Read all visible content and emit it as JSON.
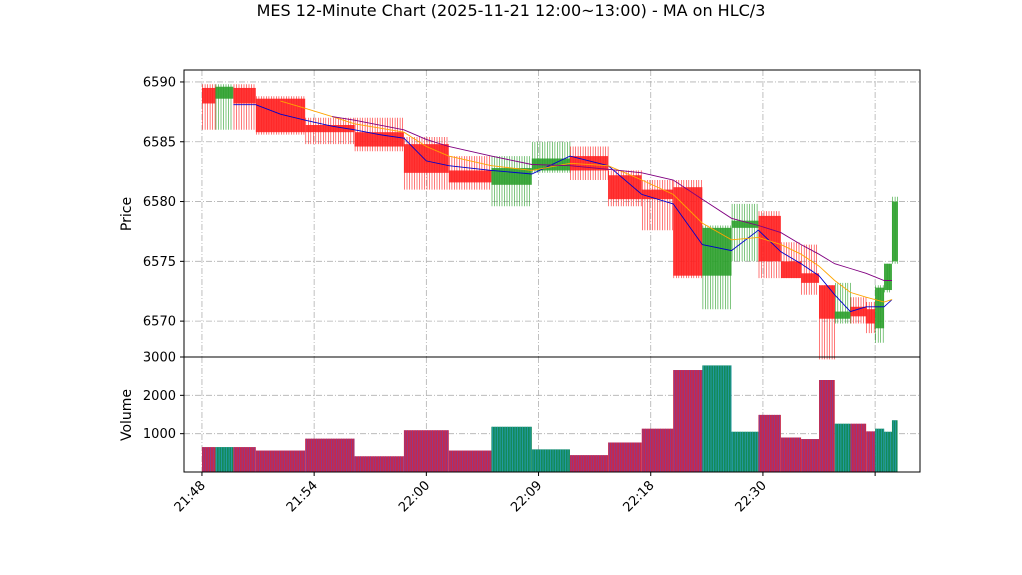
{
  "chart_data": {
    "type": "candlestick",
    "title": "MES 12-Minute Chart (2025-11-21 12:00~13:00) - MA on HLC/3",
    "price_panel": {
      "ylabel": "Price",
      "ylim": [
        6567,
        6591
      ],
      "yticks": [
        6570,
        6575,
        6580,
        6585,
        6590
      ],
      "ytick_labels": [
        "6570",
        "6575",
        "6580",
        "6585",
        "6590"
      ]
    },
    "volume_panel": {
      "ylabel": "Volume",
      "ylim": [
        0,
        3000
      ],
      "yticks": [
        1000,
        2000,
        3000
      ],
      "ytick_labels": [
        "1000",
        "2000",
        "3000"
      ]
    },
    "xlim": [
      -0.8,
      32.0
    ],
    "xticks": [
      0,
      5,
      10,
      15,
      20,
      25,
      30
    ],
    "xtick_labels": [
      "21:48",
      "21:54",
      "22:00",
      "22:09",
      "22:18",
      "22:30",
      ""
    ],
    "grid": true,
    "colors": {
      "up": "#2ca02c",
      "down": "#ff2020",
      "ma_short": "#0000cc",
      "ma_mid": "#ffa500",
      "ma_long": "#800080"
    },
    "candles": [
      {
        "x0": 0.0,
        "x1": 0.6,
        "open": 6589.5,
        "close": 6588.2,
        "high": 6589.8,
        "low": 6586.0,
        "volume": 650
      },
      {
        "x0": 0.6,
        "x1": 1.4,
        "open": 6588.6,
        "close": 6589.6,
        "high": 6589.8,
        "low": 6586.0,
        "volume": 650
      },
      {
        "x0": 1.4,
        "x1": 2.4,
        "open": 6589.5,
        "close": 6588.2,
        "high": 6589.8,
        "low": 6586.0,
        "volume": 650
      },
      {
        "x0": 2.4,
        "x1": 4.6,
        "open": 6588.6,
        "close": 6585.8,
        "high": 6588.8,
        "low": 6585.6,
        "volume": 560
      },
      {
        "x0": 4.6,
        "x1": 6.8,
        "open": 6586.4,
        "close": 6585.8,
        "high": 6587.0,
        "low": 6584.8,
        "volume": 870
      },
      {
        "x0": 6.8,
        "x1": 9.0,
        "open": 6585.8,
        "close": 6584.6,
        "high": 6587.0,
        "low": 6584.2,
        "volume": 410
      },
      {
        "x0": 9.0,
        "x1": 11.0,
        "open": 6584.8,
        "close": 6582.4,
        "high": 6585.4,
        "low": 6581.0,
        "volume": 1090
      },
      {
        "x0": 11.0,
        "x1": 12.9,
        "open": 6582.6,
        "close": 6581.6,
        "high": 6583.8,
        "low": 6581.0,
        "volume": 560
      },
      {
        "x0": 12.9,
        "x1": 14.7,
        "open": 6581.4,
        "close": 6582.8,
        "high": 6583.8,
        "low": 6579.6,
        "volume": 1180
      },
      {
        "x0": 14.7,
        "x1": 16.4,
        "open": 6582.6,
        "close": 6583.6,
        "high": 6585.0,
        "low": 6582.4,
        "volume": 590
      },
      {
        "x0": 16.4,
        "x1": 18.1,
        "open": 6583.8,
        "close": 6582.6,
        "high": 6584.6,
        "low": 6581.8,
        "volume": 440
      },
      {
        "x0": 18.1,
        "x1": 19.6,
        "open": 6582.2,
        "close": 6580.2,
        "high": 6582.6,
        "low": 6579.6,
        "volume": 770
      },
      {
        "x0": 19.6,
        "x1": 21.0,
        "open": 6581.0,
        "close": 6580.2,
        "high": 6581.8,
        "low": 6577.6,
        "volume": 1130
      },
      {
        "x0": 21.0,
        "x1": 22.3,
        "open": 6581.2,
        "close": 6573.8,
        "high": 6581.8,
        "low": 6573.6,
        "volume": 2660
      },
      {
        "x0": 22.3,
        "x1": 23.6,
        "open": 6573.8,
        "close": 6577.8,
        "high": 6578.0,
        "low": 6571.0,
        "volume": 2780
      },
      {
        "x0": 23.6,
        "x1": 24.8,
        "open": 6577.8,
        "close": 6578.4,
        "high": 6579.8,
        "low": 6575.0,
        "volume": 1050
      },
      {
        "x0": 24.8,
        "x1": 25.8,
        "open": 6578.8,
        "close": 6575.0,
        "high": 6579.2,
        "low": 6573.6,
        "volume": 1490
      },
      {
        "x0": 25.8,
        "x1": 26.7,
        "open": 6575.0,
        "close": 6573.6,
        "high": 6576.6,
        "low": 6573.6,
        "volume": 900
      },
      {
        "x0": 26.7,
        "x1": 27.5,
        "open": 6574.0,
        "close": 6573.2,
        "high": 6576.4,
        "low": 6572.2,
        "volume": 860
      },
      {
        "x0": 27.5,
        "x1": 28.2,
        "open": 6573.0,
        "close": 6570.2,
        "high": 6573.0,
        "low": 6566.8,
        "volume": 2400
      },
      {
        "x0": 28.2,
        "x1": 28.9,
        "open": 6570.2,
        "close": 6570.8,
        "high": 6573.2,
        "low": 6569.8,
        "volume": 1260
      },
      {
        "x0": 28.9,
        "x1": 29.6,
        "open": 6571.2,
        "close": 6570.4,
        "high": 6572.0,
        "low": 6569.8,
        "volume": 1260
      },
      {
        "x0": 29.6,
        "x1": 30.0,
        "open": 6571.0,
        "close": 6569.8,
        "high": 6571.6,
        "low": 6569.0,
        "volume": 1060
      },
      {
        "x0": 30.0,
        "x1": 30.4,
        "open": 6569.4,
        "close": 6572.8,
        "high": 6573.0,
        "low": 6568.2,
        "volume": 1130
      },
      {
        "x0": 30.4,
        "x1": 30.75,
        "open": 6572.6,
        "close": 6574.8,
        "high": 6574.8,
        "low": 6572.4,
        "volume": 1050
      },
      {
        "x0": 30.75,
        "x1": 31.0,
        "open": 6575.0,
        "close": 6580.0,
        "high": 6580.4,
        "low": 6574.8,
        "volume": 1350
      }
    ],
    "ma_series": [
      {
        "key": "ma_short",
        "points": [
          [
            1.4,
            6588.1
          ],
          [
            2.4,
            6588.1
          ],
          [
            3.5,
            6587.3
          ],
          [
            4.6,
            6586.8
          ],
          [
            5.8,
            6586.3
          ],
          [
            6.8,
            6586.0
          ],
          [
            7.9,
            6585.6
          ],
          [
            9.0,
            6585.3
          ],
          [
            10.0,
            6583.4
          ],
          [
            11.0,
            6583.0
          ],
          [
            12.9,
            6582.6
          ],
          [
            14.7,
            6582.3
          ],
          [
            16.4,
            6583.8
          ],
          [
            18.1,
            6583.0
          ],
          [
            19.6,
            6580.6
          ],
          [
            21.0,
            6579.8
          ],
          [
            22.3,
            6576.4
          ],
          [
            23.6,
            6575.9
          ],
          [
            24.8,
            6577.6
          ],
          [
            25.8,
            6575.8
          ],
          [
            26.7,
            6574.8
          ],
          [
            27.5,
            6573.8
          ],
          [
            28.2,
            6572.2
          ],
          [
            28.9,
            6570.8
          ],
          [
            29.6,
            6571.2
          ],
          [
            30.4,
            6571.2
          ],
          [
            30.75,
            6571.8
          ]
        ]
      },
      {
        "key": "ma_mid",
        "points": [
          [
            3.5,
            6588.4
          ],
          [
            4.6,
            6587.8
          ],
          [
            5.8,
            6587.1
          ],
          [
            6.8,
            6586.5
          ],
          [
            9.0,
            6585.8
          ],
          [
            10.0,
            6584.6
          ],
          [
            11.0,
            6583.8
          ],
          [
            12.9,
            6583.0
          ],
          [
            14.7,
            6582.6
          ],
          [
            16.4,
            6583.2
          ],
          [
            18.1,
            6583.0
          ],
          [
            19.6,
            6581.8
          ],
          [
            21.0,
            6580.6
          ],
          [
            22.3,
            6578.2
          ],
          [
            23.6,
            6576.8
          ],
          [
            24.8,
            6577.0
          ],
          [
            25.8,
            6576.4
          ],
          [
            26.7,
            6575.6
          ],
          [
            27.5,
            6574.6
          ],
          [
            28.2,
            6573.4
          ],
          [
            28.9,
            6572.4
          ],
          [
            29.6,
            6572.0
          ],
          [
            30.4,
            6571.6
          ],
          [
            30.75,
            6571.8
          ]
        ]
      },
      {
        "key": "ma_long",
        "points": [
          [
            5.8,
            6587.1
          ],
          [
            6.8,
            6586.8
          ],
          [
            9.0,
            6586.0
          ],
          [
            10.0,
            6585.2
          ],
          [
            11.0,
            6584.6
          ],
          [
            12.9,
            6583.8
          ],
          [
            14.7,
            6583.1
          ],
          [
            16.4,
            6583.0
          ],
          [
            18.1,
            6582.7
          ],
          [
            19.6,
            6582.4
          ],
          [
            21.0,
            6581.8
          ],
          [
            22.3,
            6580.2
          ],
          [
            23.6,
            6578.6
          ],
          [
            24.8,
            6578.0
          ],
          [
            25.8,
            6577.4
          ],
          [
            26.7,
            6576.4
          ],
          [
            27.5,
            6575.6
          ],
          [
            28.2,
            6574.8
          ],
          [
            28.9,
            6574.4
          ],
          [
            29.6,
            6574.0
          ],
          [
            30.4,
            6573.4
          ],
          [
            30.75,
            6573.4
          ]
        ]
      }
    ]
  }
}
